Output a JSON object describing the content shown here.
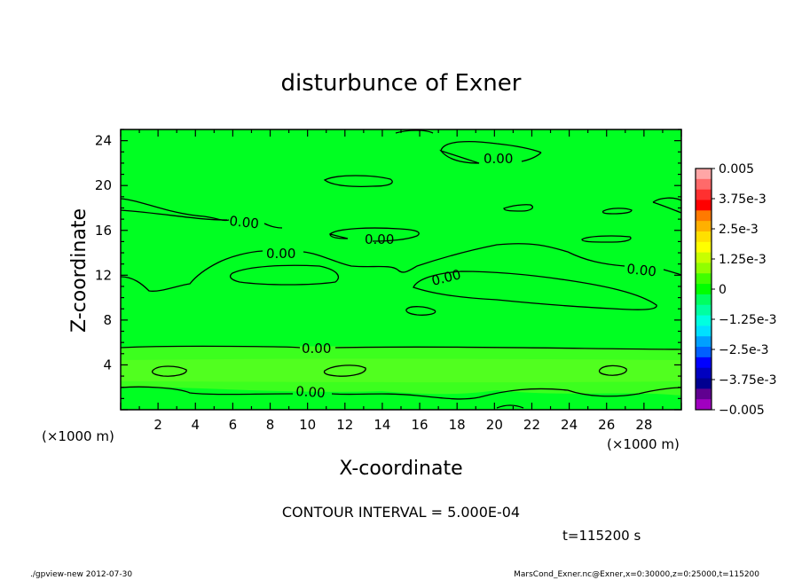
{
  "chart_data": {
    "type": "contour",
    "title": "disturbunce of Exner",
    "xlabel": "X-coordinate",
    "ylabel": "Z-coordinate",
    "x_unit": "(×1000 m)",
    "y_unit": "(×1000 m)",
    "xlim": [
      0,
      30
    ],
    "ylim": [
      0,
      25
    ],
    "x_ticks": [
      "2",
      "4",
      "6",
      "8",
      "10",
      "12",
      "14",
      "16",
      "18",
      "20",
      "22",
      "24",
      "26",
      "28"
    ],
    "y_ticks": [
      "4",
      "8",
      "12",
      "16",
      "20",
      "24"
    ],
    "contour_label": "0.00",
    "contour_interval_text": "CONTOUR INTERVAL = 5.000E-04",
    "time_text": "t=115200 s",
    "footer_left": "./gpview-new   2012-07-30",
    "footer_right": "MarsCond_Exner.nc@Exner,x=0:30000,z=0:25000,t=115200",
    "colorbar": {
      "labels": [
        "0.005",
        "3.75e-3",
        "2.5e-3",
        "1.25e-3",
        "0",
        "−1.25e-3",
        "−2.5e-3",
        "−3.75e-3",
        "−0.005"
      ],
      "colors": [
        "#ffa6a6",
        "#ff6a6a",
        "#ff3030",
        "#ff0000",
        "#ff7a00",
        "#ffb000",
        "#ffe000",
        "#ffff00",
        "#c8ff00",
        "#90ff00",
        "#40ff00",
        "#00ff00",
        "#00ff60",
        "#00ffa0",
        "#00ffe0",
        "#00e0ff",
        "#00a0ff",
        "#0060ff",
        "#0000ff",
        "#0000c0",
        "#000090",
        "#600090",
        "#a000c0"
      ]
    },
    "fill": {
      "base_color": "#00ff22",
      "low_band_color": "#3cff1e",
      "low_band_bright_color": "#5aff20"
    }
  }
}
